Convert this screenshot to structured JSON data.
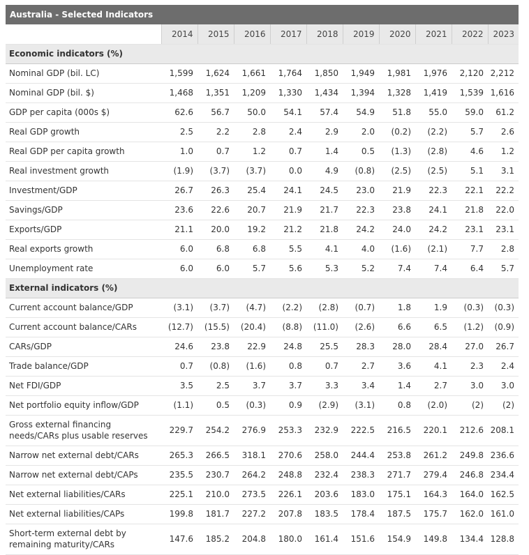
{
  "title": "Australia - Selected Indicators",
  "years": [
    "2014",
    "2015",
    "2016",
    "2017",
    "2018",
    "2019",
    "2020",
    "2021",
    "2022",
    "2023"
  ],
  "sections": [
    {
      "name": "Economic indicators (%)",
      "rows": [
        {
          "label": "Nominal GDP (bil. LC)",
          "values": [
            "1,599",
            "1,624",
            "1,661",
            "1,764",
            "1,850",
            "1,949",
            "1,981",
            "1,976",
            "2,120",
            "2,212"
          ]
        },
        {
          "label": "Nominal GDP (bil. $)",
          "values": [
            "1,468",
            "1,351",
            "1,209",
            "1,330",
            "1,434",
            "1,394",
            "1,328",
            "1,419",
            "1,539",
            "1,616"
          ]
        },
        {
          "label": "GDP per capita (000s $)",
          "values": [
            "62.6",
            "56.7",
            "50.0",
            "54.1",
            "57.4",
            "54.9",
            "51.8",
            "55.0",
            "59.0",
            "61.2"
          ]
        },
        {
          "label": "Real GDP growth",
          "values": [
            "2.5",
            "2.2",
            "2.8",
            "2.4",
            "2.9",
            "2.0",
            "(0.2)",
            "(2.2)",
            "5.7",
            "2.6"
          ]
        },
        {
          "label": "Real GDP per capita growth",
          "values": [
            "1.0",
            "0.7",
            "1.2",
            "0.7",
            "1.4",
            "0.5",
            "(1.3)",
            "(2.8)",
            "4.6",
            "1.2"
          ]
        },
        {
          "label": "Real investment growth",
          "values": [
            "(1.9)",
            "(3.7)",
            "(3.7)",
            "0.0",
            "4.9",
            "(0.8)",
            "(2.5)",
            "(2.5)",
            "5.1",
            "3.1"
          ]
        },
        {
          "label": "Investment/GDP",
          "values": [
            "26.7",
            "26.3",
            "25.4",
            "24.1",
            "24.5",
            "23.0",
            "21.9",
            "22.3",
            "22.1",
            "22.2"
          ]
        },
        {
          "label": "Savings/GDP",
          "values": [
            "23.6",
            "22.6",
            "20.7",
            "21.9",
            "21.7",
            "22.3",
            "23.8",
            "24.1",
            "21.8",
            "22.0"
          ]
        },
        {
          "label": "Exports/GDP",
          "values": [
            "21.1",
            "20.0",
            "19.2",
            "21.2",
            "21.8",
            "24.2",
            "24.0",
            "24.2",
            "23.1",
            "23.1"
          ]
        },
        {
          "label": "Real exports growth",
          "values": [
            "6.0",
            "6.8",
            "6.8",
            "5.5",
            "4.1",
            "4.0",
            "(1.6)",
            "(2.1)",
            "7.7",
            "2.8"
          ]
        },
        {
          "label": "Unemployment rate",
          "values": [
            "6.0",
            "6.0",
            "5.7",
            "5.6",
            "5.3",
            "5.2",
            "7.4",
            "7.4",
            "6.4",
            "5.7"
          ]
        }
      ]
    },
    {
      "name": "External indicators (%)",
      "rows": [
        {
          "label": "Current account balance/GDP",
          "values": [
            "(3.1)",
            "(3.7)",
            "(4.7)",
            "(2.2)",
            "(2.8)",
            "(0.7)",
            "1.8",
            "1.9",
            "(0.3)",
            "(0.3)"
          ]
        },
        {
          "label": "Current account balance/CARs",
          "values": [
            "(12.7)",
            "(15.5)",
            "(20.4)",
            "(8.8)",
            "(11.0)",
            "(2.6)",
            "6.6",
            "6.5",
            "(1.2)",
            "(0.9)"
          ]
        },
        {
          "label": "CARs/GDP",
          "values": [
            "24.6",
            "23.8",
            "22.9",
            "24.8",
            "25.5",
            "28.3",
            "28.0",
            "28.4",
            "27.0",
            "26.7"
          ]
        },
        {
          "label": "Trade balance/GDP",
          "values": [
            "0.7",
            "(0.8)",
            "(1.6)",
            "0.8",
            "0.7",
            "2.7",
            "3.6",
            "4.1",
            "2.3",
            "2.4"
          ]
        },
        {
          "label": "Net FDI/GDP",
          "values": [
            "3.5",
            "2.5",
            "3.7",
            "3.7",
            "3.3",
            "3.4",
            "1.4",
            "2.7",
            "3.0",
            "3.0"
          ]
        },
        {
          "label": "Net portfolio equity inflow/GDP",
          "values": [
            "(1.1)",
            "0.5",
            "(0.3)",
            "0.9",
            "(2.9)",
            "(3.1)",
            "0.8",
            "(2.0)",
            "(2)",
            "(2)"
          ]
        },
        {
          "label": "Gross external financing needs/CARs plus usable reserves",
          "tall": true,
          "values": [
            "229.7",
            "254.2",
            "276.9",
            "253.3",
            "232.9",
            "222.5",
            "216.5",
            "220.1",
            "212.6",
            "208.1"
          ]
        },
        {
          "label": "Narrow net external debt/CARs",
          "values": [
            "265.3",
            "266.5",
            "318.1",
            "270.6",
            "258.0",
            "244.4",
            "253.8",
            "261.2",
            "249.8",
            "236.6"
          ]
        },
        {
          "label": "Narrow net external debt/CAPs",
          "values": [
            "235.5",
            "230.7",
            "264.2",
            "248.8",
            "232.4",
            "238.3",
            "271.7",
            "279.4",
            "246.8",
            "234.4"
          ]
        },
        {
          "label": "Net external liabilities/CARs",
          "values": [
            "225.1",
            "210.0",
            "273.5",
            "226.1",
            "203.6",
            "183.0",
            "175.1",
            "164.3",
            "164.0",
            "162.5"
          ]
        },
        {
          "label": "Net external liabilities/CAPs",
          "values": [
            "199.8",
            "181.7",
            "227.2",
            "207.8",
            "183.5",
            "178.4",
            "187.5",
            "175.7",
            "162.0",
            "161.0"
          ]
        },
        {
          "label": "Short-term external debt by remaining maturity/CARs",
          "tall": true,
          "values": [
            "147.6",
            "185.2",
            "204.8",
            "180.0",
            "161.4",
            "151.6",
            "154.9",
            "149.8",
            "134.4",
            "128.8"
          ]
        }
      ]
    }
  ]
}
